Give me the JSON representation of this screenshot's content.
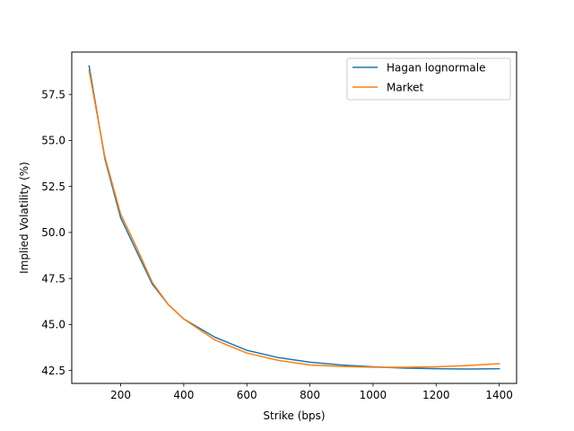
{
  "chart_data": {
    "type": "line",
    "title": "",
    "xlabel": "Strike (bps)",
    "ylabel": "Implied Volatility (%)",
    "xlim": [
      45,
      1455
    ],
    "ylim": [
      41.8,
      59.8
    ],
    "xticks": [
      200,
      400,
      600,
      800,
      1000,
      1200,
      1400
    ],
    "xtick_labels": [
      "200",
      "400",
      "600",
      "800",
      "1000",
      "1200",
      "1400"
    ],
    "yticks": [
      42.5,
      45.0,
      47.5,
      50.0,
      52.5,
      55.0,
      57.5
    ],
    "ytick_labels": [
      "42.5",
      "45.0",
      "47.5",
      "50.0",
      "52.5",
      "55.0",
      "57.5"
    ],
    "grid": false,
    "legend_position": "top-right",
    "x": [
      100,
      150,
      200,
      250,
      300,
      350,
      400,
      500,
      600,
      700,
      800,
      900,
      1000,
      1100,
      1200,
      1300,
      1400
    ],
    "series": [
      {
        "name": "Hagan lognormale",
        "color": "#1f77b4",
        "values": [
          59.05,
          54.0,
          50.8,
          49.0,
          47.2,
          46.1,
          45.3,
          44.3,
          43.6,
          43.2,
          42.95,
          42.8,
          42.7,
          42.63,
          42.6,
          42.58,
          42.6
        ]
      },
      {
        "name": "Market",
        "color": "#ff7f0e",
        "values": [
          58.8,
          54.1,
          51.0,
          49.2,
          47.3,
          46.1,
          45.3,
          44.15,
          43.45,
          43.05,
          42.8,
          42.72,
          42.68,
          42.68,
          42.7,
          42.77,
          42.87
        ]
      }
    ]
  }
}
